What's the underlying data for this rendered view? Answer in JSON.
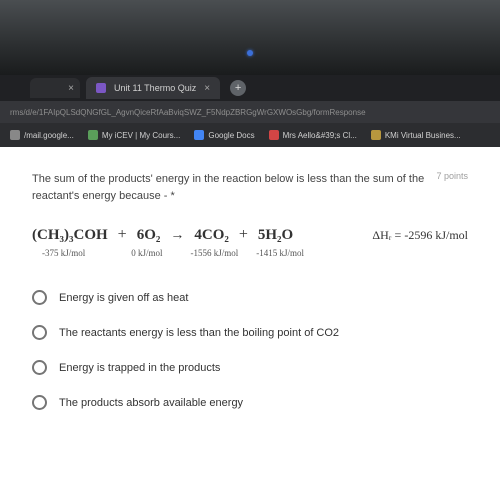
{
  "tab": {
    "title": "Unit 11 Thermo Quiz",
    "close": "×",
    "inactive_close": "×",
    "plus": "+"
  },
  "url": "rms/d/e/1FAIpQLSdQNGfGL_AgvnQiceRfAaBviqSWZ_F5NdpZBRGgWrGXWOsGbg/formResponse",
  "bookmarks": [
    {
      "label": "/mail.google...",
      "color": "#888888"
    },
    {
      "label": "My iCEV | My Cours...",
      "color": "#5a9e5a"
    },
    {
      "label": "Google Docs",
      "color": "#4285f4"
    },
    {
      "label": "Mrs Aello&#39;s Cl...",
      "color": "#d34545"
    },
    {
      "label": "KMi Virtual Busines...",
      "color": "#b8973e"
    }
  ],
  "question": {
    "text": "The sum of the products' energy in the reaction below is less than the sum of the reactant's energy because - *",
    "points": "7 points"
  },
  "reaction": {
    "r1": "(CH₃)₃COH",
    "plus1": "+",
    "r2": "6O₂",
    "arrow": "→",
    "p1": "4CO₂",
    "plus2": "+",
    "p2": "5H₂O",
    "dh_label": "ΔHᵣ =",
    "dh_value": "-2596 kJ/mol"
  },
  "energies": {
    "e1": "-375 kJ/mol",
    "e2": "0 kJ/mol",
    "e3": "-1556 kJ/mol",
    "e4": "-1415 kJ/mol"
  },
  "options": [
    "Energy is given off as heat",
    "The reactants energy is less than the boiling point of CO2",
    "Energy is trapped in the products",
    "The products absorb available energy"
  ]
}
